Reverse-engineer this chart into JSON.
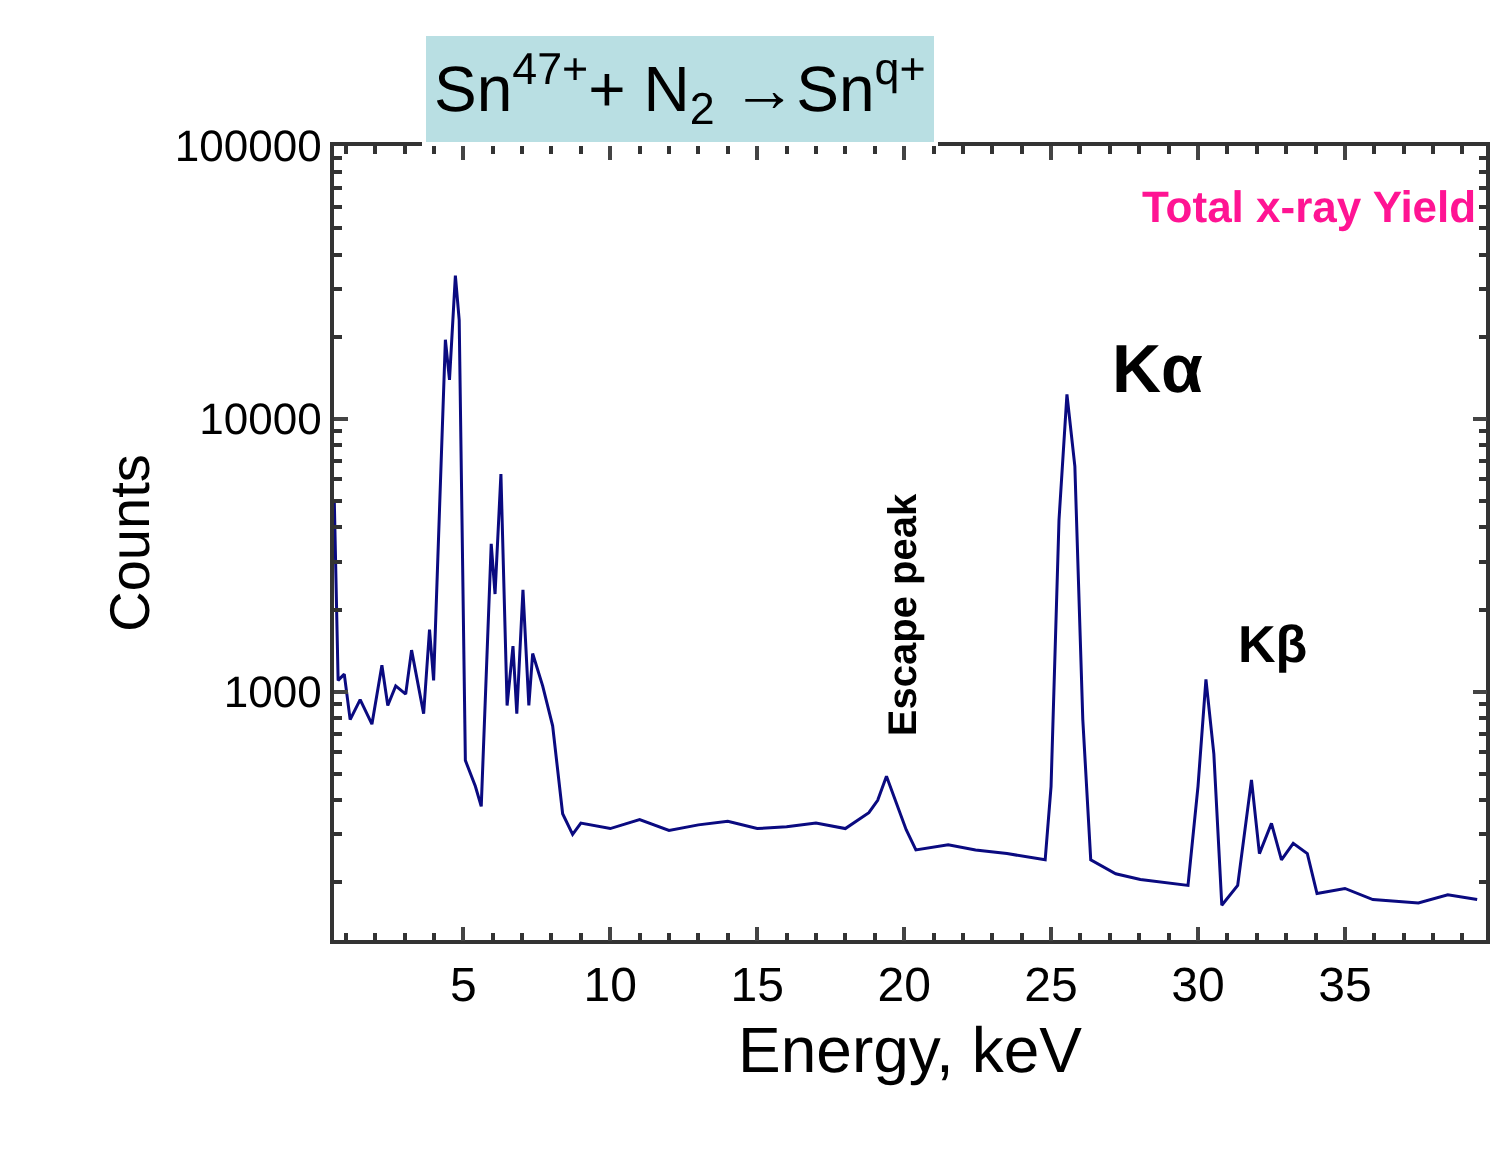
{
  "chart_data": {
    "type": "line",
    "title": "Sn$^{47+}$+ N$_{2}$ →Sn$^{q+}$",
    "xlabel": "Energy, keV",
    "ylabel": "Counts",
    "annotations": [
      "Escape peak",
      "Kα",
      "Kβ",
      "Total x-ray Yield"
    ],
    "log": "y",
    "marker": "none",
    "line_style": "solid",
    "xlim": [
      0.6,
      39.8
    ],
    "ylim": [
      123,
      100000
    ],
    "xticks": [
      5,
      10,
      15,
      20,
      25,
      30,
      35
    ],
    "yticks": [
      1000,
      10000,
      100000
    ],
    "series": [
      {
        "color": "#0a0a80",
        "x": [
          0.61,
          0.74,
          0.95,
          1.15,
          1.49,
          1.89,
          2.23,
          2.43,
          2.7,
          3.04,
          3.24,
          3.65,
          3.85,
          3.99,
          4.39,
          4.53,
          4.73,
          4.86,
          5.07,
          5.41,
          5.61,
          5.95,
          6.08,
          6.28,
          6.49,
          6.69,
          6.82,
          7.03,
          7.23,
          7.36,
          7.7,
          8.04,
          8.38,
          8.72,
          9,
          10,
          11,
          12,
          13,
          14,
          15,
          16,
          17,
          18,
          18.8,
          19.1,
          19.4,
          20.07,
          20.4,
          21.5,
          22.43,
          23.5,
          24.8,
          25.0,
          25.27,
          25.54,
          25.81,
          26.08,
          26.35,
          27.2,
          28.04,
          29.66,
          30.0,
          30.27,
          30.54,
          30.81,
          31.35,
          31.82,
          32.09,
          32.5,
          32.84,
          33.24,
          33.72,
          34.05,
          35.0,
          35.95,
          37.5,
          38.5,
          39.5
        ],
        "values": [
          5000,
          1100,
          1160,
          790,
          935,
          760,
          1250,
          890,
          1050,
          980,
          1420,
          830,
          1690,
          1100,
          19500,
          13900,
          33500,
          23000,
          560,
          450,
          380,
          3480,
          2280,
          6280,
          890,
          1470,
          830,
          2360,
          890,
          1380,
          1050,
          750,
          357,
          300,
          330,
          315,
          340,
          310,
          325,
          335,
          315,
          320,
          330,
          315,
          360,
          400,
          490,
          312,
          263,
          275,
          263,
          255,
          242,
          450,
          4260,
          12300,
          6700,
          790,
          242,
          215,
          205,
          195,
          450,
          1110,
          590,
          165,
          195,
          475,
          255,
          329,
          242,
          278,
          255,
          182,
          190,
          173,
          168,
          180,
          173
        ]
      }
    ]
  }
}
